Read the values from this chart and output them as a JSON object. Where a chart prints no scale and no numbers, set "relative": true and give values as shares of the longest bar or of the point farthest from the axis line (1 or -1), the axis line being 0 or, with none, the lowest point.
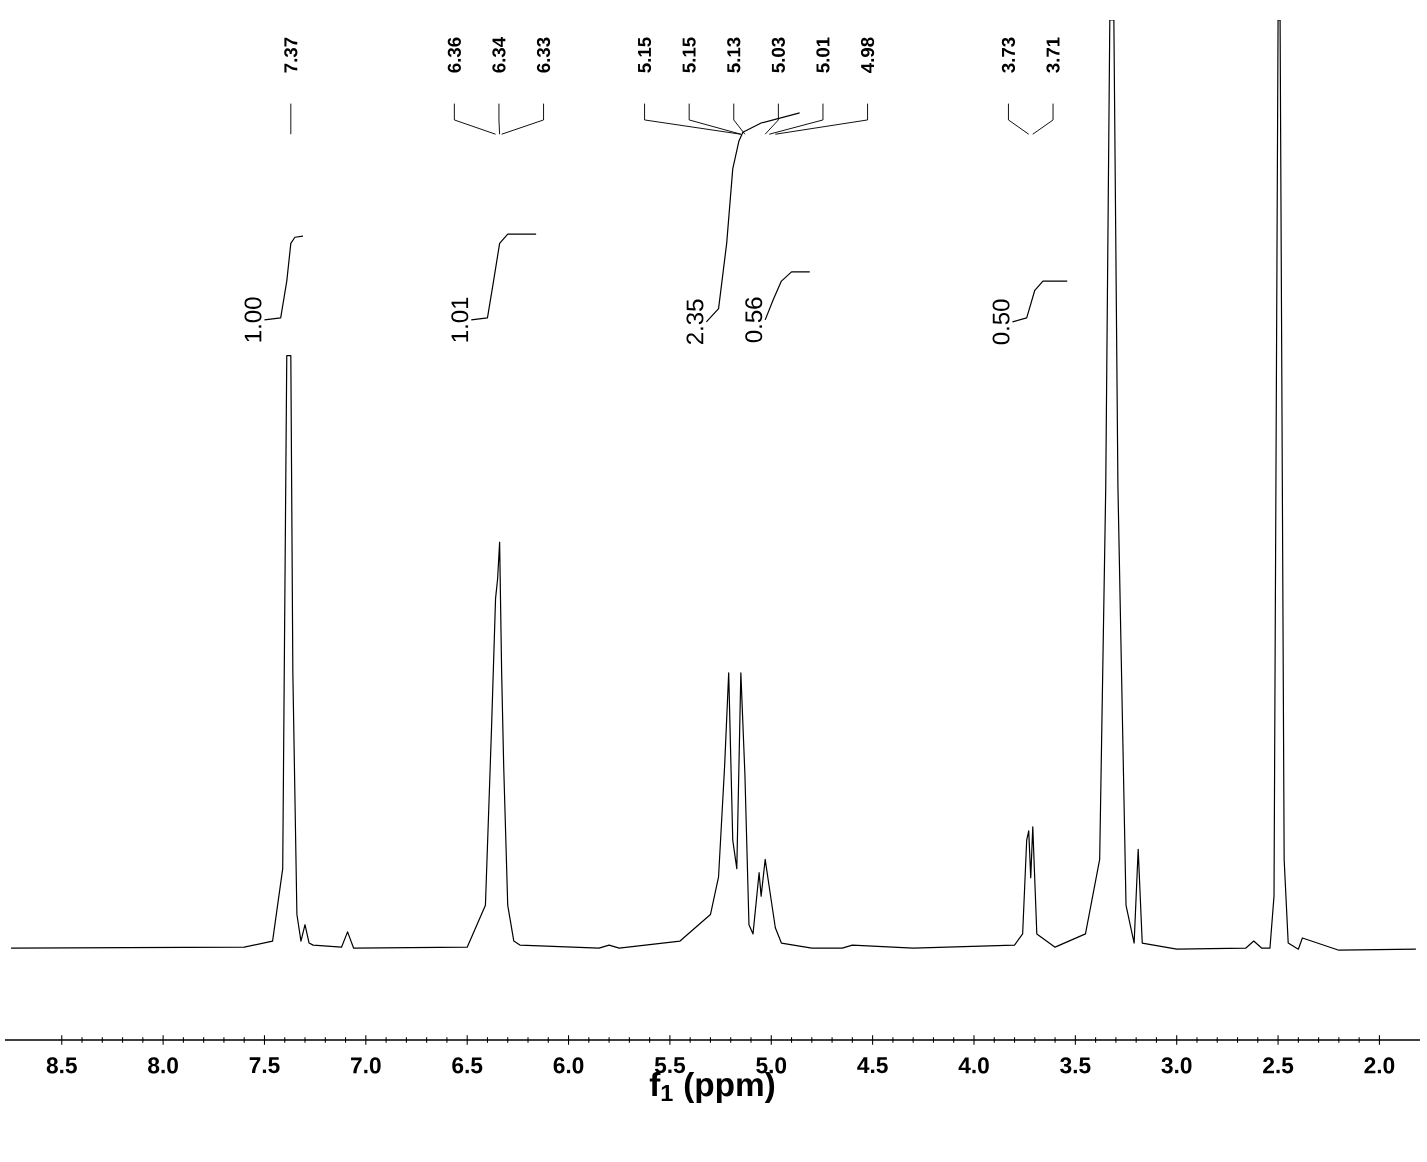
{
  "chart_data": {
    "type": "line",
    "relative": true,
    "xlabel": "f$_{1}$ (ppm)",
    "xlim": [
      8.78,
      1.8
    ],
    "xticks": [
      8.5,
      {
        "value": 8,
        "label": "8.0"
      },
      7.5,
      {
        "value": 7,
        "label": "7.0"
      },
      6.5,
      {
        "value": 6,
        "label": "6.0"
      },
      5.5,
      {
        "value": 5,
        "label": "5.0"
      },
      4.5,
      {
        "value": 4,
        "label": "4.0"
      },
      3.5,
      {
        "value": 3,
        "label": "3.0"
      },
      2.5,
      {
        "value": 2,
        "label": "2.0"
      }
    ],
    "series": [
      {
        "color": "#000000",
        "x": [
          8.75,
          7.6,
          7.46,
          7.41,
          7.39,
          7.37,
          7.36,
          7.34,
          7.32,
          7.3,
          7.28,
          7.26,
          7.12,
          7.09,
          7.06,
          6.5,
          6.41,
          6.38,
          6.36,
          6.35,
          6.34,
          6.33,
          6.32,
          6.3,
          6.27,
          6.24,
          5.85,
          5.8,
          5.75,
          5.45,
          5.3,
          5.26,
          5.23,
          5.21,
          5.19,
          5.17,
          5.15,
          5.13,
          5.11,
          5.09,
          5.06,
          5.05,
          5.03,
          5.01,
          4.98,
          4.95,
          4.8,
          4.65,
          4.6,
          4.3,
          3.8,
          3.76,
          3.74,
          3.73,
          3.72,
          3.71,
          3.69,
          3.6,
          3.45,
          3.38,
          3.35,
          3.33,
          3.31,
          3.29,
          3.25,
          3.21,
          3.19,
          3.17,
          3.0,
          2.66,
          2.62,
          2.58,
          2.54,
          2.52,
          2.5,
          2.49,
          2.47,
          2.45,
          2.4,
          2.38,
          2.2,
          1.82
        ],
        "values": [
          0.09,
          0.091,
          0.097,
          0.168,
          0.671,
          0.671,
          0.36,
          0.123,
          0.097,
          0.113,
          0.095,
          0.093,
          0.091,
          0.106,
          0.09,
          0.091,
          0.132,
          0.305,
          0.433,
          0.452,
          0.488,
          0.36,
          0.269,
          0.132,
          0.097,
          0.093,
          0.09,
          0.093,
          0.09,
          0.097,
          0.123,
          0.16,
          0.269,
          0.36,
          0.196,
          0.168,
          0.36,
          0.26,
          0.113,
          0.104,
          0.164,
          0.141,
          0.177,
          0.15,
          0.11,
          0.095,
          0.09,
          0.09,
          0.093,
          0.09,
          0.093,
          0.104,
          0.196,
          0.205,
          0.159,
          0.209,
          0.104,
          0.091,
          0.104,
          0.177,
          0.543,
          1,
          1,
          0.543,
          0.132,
          0.095,
          0.187,
          0.095,
          0.089,
          0.09,
          0.097,
          0.09,
          0.09,
          0.141,
          1,
          1,
          0.177,
          0.095,
          0.089,
          0.1,
          0.088,
          0.089
        ]
      },
      {
        "name": "1.00",
        "color": "#000000",
        "x": [
          7.5,
          7.42,
          7.39,
          7.37,
          7.35,
          7.31
        ],
        "values": [
          0.706,
          0.708,
          0.744,
          0.781,
          0.787,
          0.788
        ]
      },
      {
        "name": "1.01",
        "color": "#000000",
        "x": [
          6.48,
          6.4,
          6.37,
          6.34,
          6.3,
          6.16
        ],
        "values": [
          0.706,
          0.708,
          0.744,
          0.781,
          0.79,
          0.79
        ]
      },
      {
        "name": "2.35",
        "color": "#000000",
        "x": [
          5.32,
          5.26,
          5.22,
          5.19,
          5.16,
          5.14,
          5.05,
          4.86
        ],
        "values": [
          0.704,
          0.717,
          0.781,
          0.854,
          0.881,
          0.89,
          0.899,
          0.909
        ]
      },
      {
        "name": "0.56",
        "color": "#000000",
        "x": [
          5.03,
          4.99,
          4.95,
          4.9,
          4.81
        ],
        "values": [
          0.706,
          0.726,
          0.744,
          0.753,
          0.753
        ]
      },
      {
        "name": "0.50",
        "color": "#000000",
        "x": [
          3.81,
          3.74,
          3.7,
          3.66,
          3.54
        ],
        "values": [
          0.704,
          0.708,
          0.735,
          0.744,
          0.744
        ]
      }
    ],
    "annotations": [
      "7.37",
      "6.36",
      "6.34",
      "6.33",
      "5.15",
      "5.15",
      "5.13",
      "5.03",
      "5.01",
      "4.98",
      "3.73",
      "3.71"
    ]
  }
}
